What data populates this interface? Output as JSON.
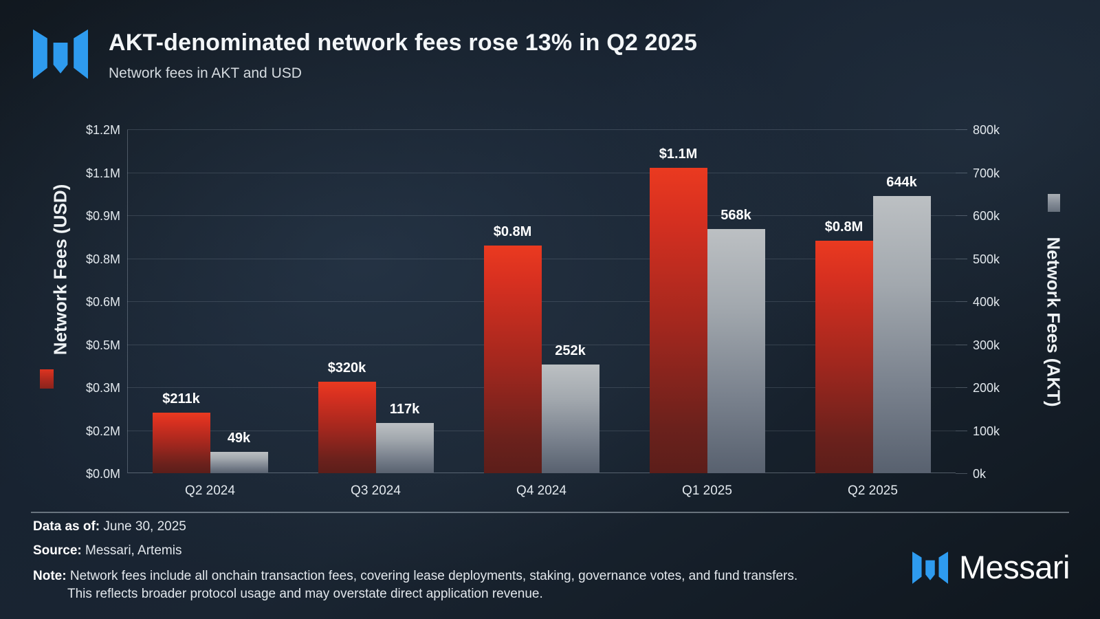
{
  "header": {
    "title": "AKT-denominated network fees rose 13% in Q2 2025",
    "subtitle": "Network fees in AKT and USD"
  },
  "chart_data": {
    "type": "bar",
    "categories": [
      "Q2 2024",
      "Q3 2024",
      "Q4 2024",
      "Q1 2025",
      "Q2 2025"
    ],
    "series": [
      {
        "name": "Network Fees (USD)",
        "axis": "left",
        "values": [
          211000,
          320000,
          795000,
          1065000,
          812000
        ],
        "labels": [
          "$211k",
          "$320k",
          "$0.8M",
          "$1.1M",
          "$0.8M"
        ],
        "color_top": "#ea3a20",
        "color_bottom": "#5c1e1a"
      },
      {
        "name": "Network Fees (AKT)",
        "axis": "right",
        "values": [
          49000,
          117000,
          252000,
          568000,
          644000
        ],
        "labels": [
          "49k",
          "117k",
          "252k",
          "568k",
          "644k"
        ],
        "color_top": "#bcc0c3",
        "color_bottom": "#58616f"
      }
    ],
    "left_axis": {
      "title": "Network Fees (USD)",
      "max": 1200000,
      "ticks": [
        0,
        150000,
        300000,
        450000,
        600000,
        750000,
        900000,
        1050000,
        1200000
      ],
      "tick_labels": [
        "$0.0M",
        "$0.2M",
        "$0.3M",
        "$0.5M",
        "$0.6M",
        "$0.8M",
        "$0.9M",
        "$1.1M",
        "$1.2M"
      ]
    },
    "right_axis": {
      "title": "Network Fees (AKT)",
      "max": 800000,
      "ticks": [
        0,
        100000,
        200000,
        300000,
        400000,
        500000,
        600000,
        700000,
        800000
      ],
      "tick_labels": [
        "0k",
        "100k",
        "200k",
        "300k",
        "400k",
        "500k",
        "600k",
        "700k",
        "800k"
      ]
    },
    "grid": true,
    "legend_position": "axis-title-swatches"
  },
  "footer": {
    "data_as_of_label": "Data as of:",
    "data_as_of_value": "June 30, 2025",
    "source_label": "Source:",
    "source_value": "Messari, Artemis",
    "note_label": "Note:",
    "note_text": "Network fees include all onchain transaction fees, covering lease deployments, staking, governance votes, and fund transfers. This reflects broader protocol usage and may overstate direct application revenue.",
    "brand_wordmark": "Messari"
  },
  "colors": {
    "brand_blue": "#2e9bef",
    "background_dark": "#10161d",
    "bar_red": "#d73020",
    "bar_gray": "#9aa1a8"
  }
}
